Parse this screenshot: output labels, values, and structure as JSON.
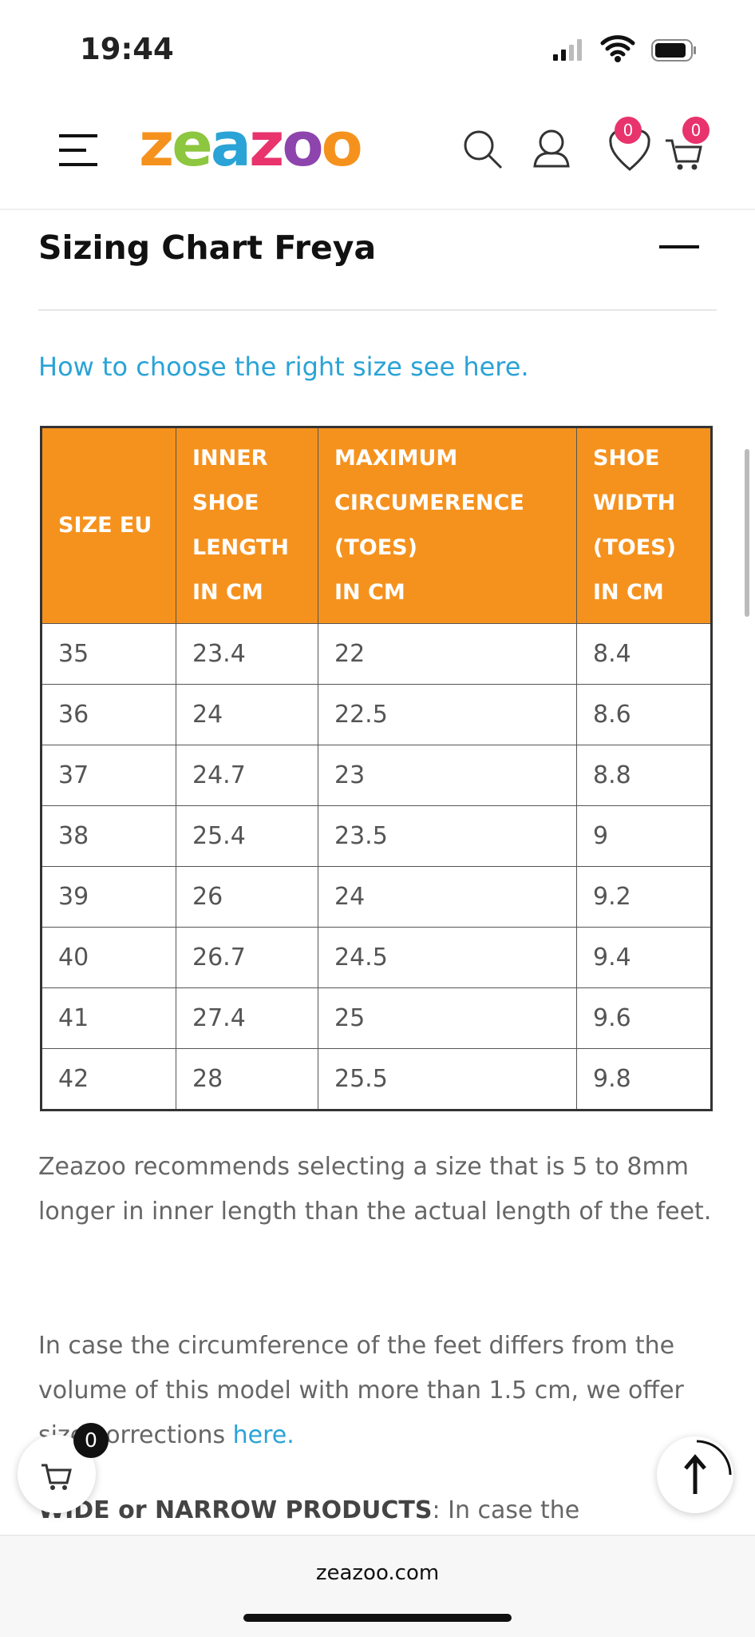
{
  "status_bar": {
    "time": "19:44"
  },
  "header": {
    "logo": "zeazoo",
    "wishlist_count": "0",
    "cart_count": "0"
  },
  "section": {
    "title": "Sizing Chart Freya",
    "link": "How to choose the right size see here."
  },
  "table": {
    "header": [
      [
        "SIZE EU"
      ],
      [
        "INNER",
        "SHOE",
        "LENGTH",
        "IN CM"
      ],
      [
        "MAXIMUM",
        "CIRCUMERENCE",
        "(TOES)",
        "IN CM"
      ],
      [
        "SHOE",
        "WIDTH",
        "(TOES)",
        "IN CM"
      ]
    ],
    "rows": [
      [
        "35",
        "23.4",
        "22",
        "8.4"
      ],
      [
        "36",
        "24",
        "22.5",
        "8.6"
      ],
      [
        "37",
        "24.7",
        "23",
        "8.8"
      ],
      [
        "38",
        "25.4",
        "23.5",
        "9"
      ],
      [
        "39",
        "26",
        "24",
        "9.2"
      ],
      [
        "40",
        "26.7",
        "24.5",
        "9.4"
      ],
      [
        "41",
        "27.4",
        "25",
        "9.6"
      ],
      [
        "42",
        "28",
        "25.5",
        "9.8"
      ]
    ]
  },
  "content": {
    "paragraph_1": "Zeazoo recommends selecting a size that is 5 to 8mm longer in inner length than the actual length of the feet.",
    "paragraph_2": {
      "text": "In case the circumference of the feet differs from the volume of this model with more than 1.5 cm, we offer size corrections ",
      "link": "here."
    },
    "paragraph_3": {
      "bold": "WIDE or NARROW PRODUCTS",
      "text": ": In case the"
    }
  },
  "floating_cart_count": "0",
  "footer": {
    "url": "zeazoo.com"
  }
}
